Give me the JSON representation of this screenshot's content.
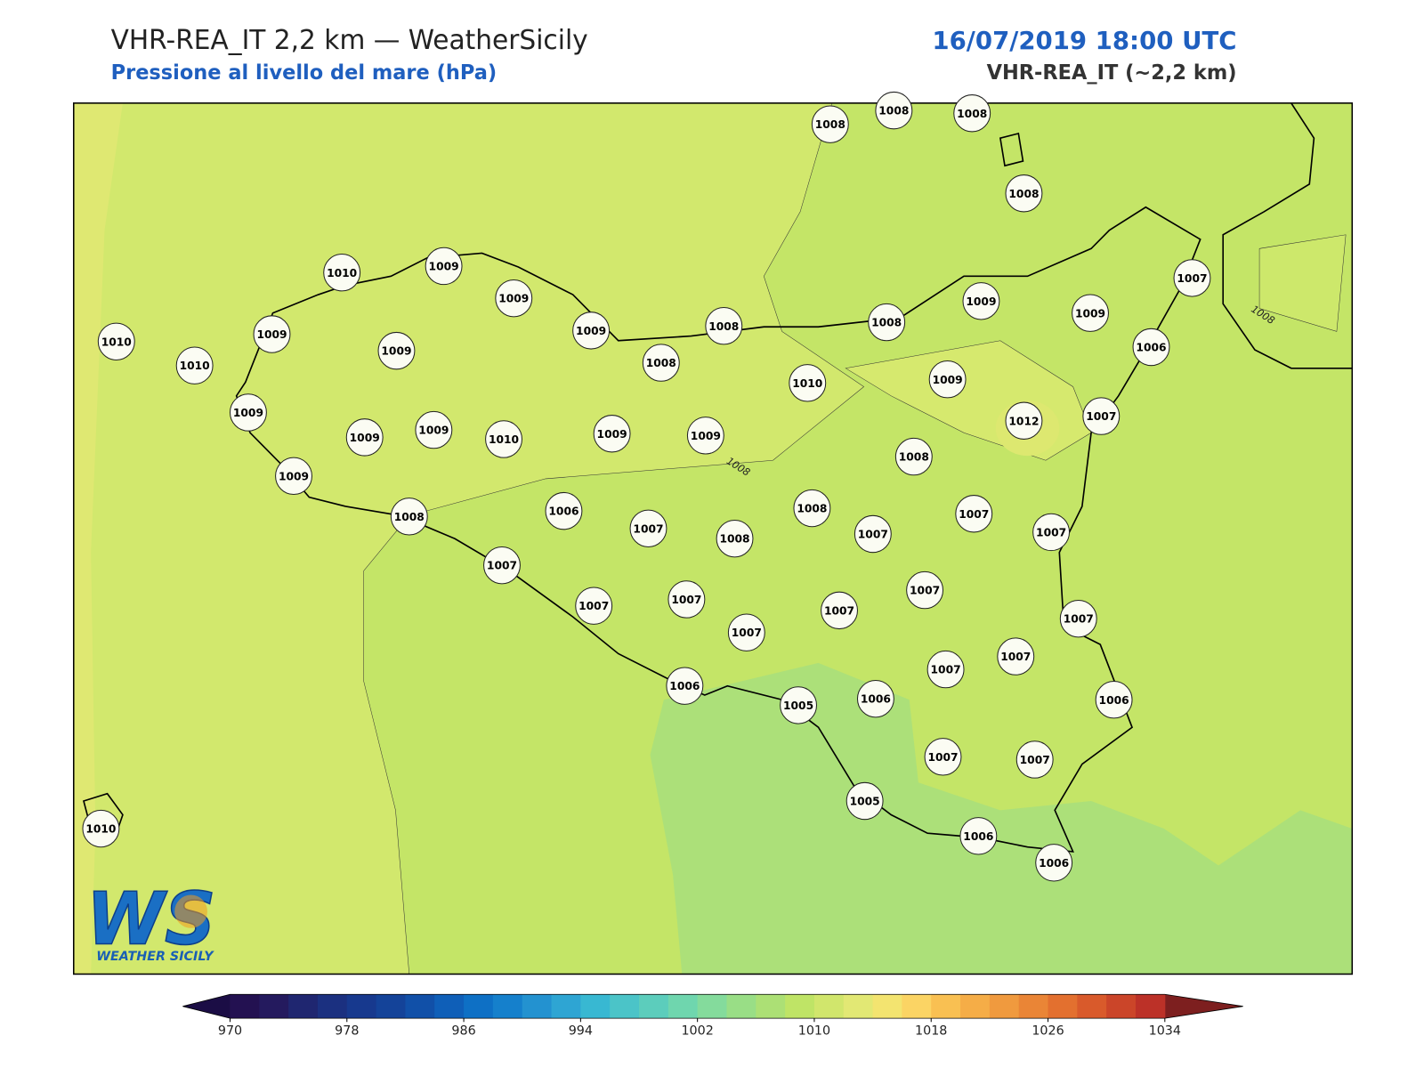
{
  "header": {
    "title": "VHR-REA_IT 2,2 km — WeatherSicily",
    "subtitle": "Pressione al livello del mare (hPa)",
    "datetime": "16/07/2019 18:00 UTC",
    "model": "VHR-REA_IT (~2,2 km)"
  },
  "stations": [
    1008,
    1008,
    1008,
    1008,
    1010,
    1009,
    1009,
    1009,
    1008,
    1008,
    1008,
    1009,
    1009,
    1007,
    1006,
    1010,
    1010,
    1009,
    1009,
    1009,
    1009,
    1009,
    1010,
    1009,
    1009,
    1010,
    1009,
    1012,
    1007,
    1008,
    1009,
    1008,
    1006,
    1007,
    1008,
    1008,
    1007,
    1007,
    1007,
    1007,
    1007,
    1007,
    1007,
    1007,
    1007,
    1007,
    1007,
    1007,
    1006,
    1005,
    1006,
    1006,
    1007,
    1007,
    1005,
    1006,
    1006,
    1010
  ],
  "contour_labels": [
    1008,
    1008
  ],
  "colorbar": {
    "ticks": [
      970,
      978,
      986,
      994,
      1002,
      1010,
      1018,
      1026,
      1034
    ],
    "colors": [
      "#231151",
      "#241a5e",
      "#1f2670",
      "#1b3080",
      "#17398e",
      "#144399",
      "#1150a8",
      "#0f5fb8",
      "#0e70c5",
      "#1580cc",
      "#2392d0",
      "#2ea5d3",
      "#38b8d2",
      "#4bc4c8",
      "#5ccdbc",
      "#6fd6ae",
      "#84db9c",
      "#99de86",
      "#ace075",
      "#bfe466",
      "#d1e66c",
      "#e2e874",
      "#f3e470",
      "#fbd464",
      "#f9c052",
      "#f5ad47",
      "#f09a3e",
      "#ea8536",
      "#e3702f",
      "#d95a2b",
      "#cb4529",
      "#bc3128"
    ],
    "under_color": "#1b0d45",
    "over_color": "#7d1f1f"
  },
  "logo": {
    "mark": "WS",
    "name": "WEATHER SICILY"
  }
}
